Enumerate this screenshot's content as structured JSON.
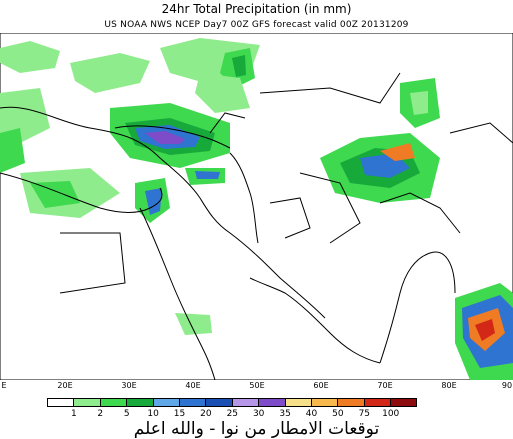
{
  "title": "24hr Total Precipitation (in mm)",
  "subtitle": "US NOAA NWS NCEP Day7 00Z GFS forecast valid 00Z 20131209",
  "longitude_labels": [
    "E",
    "20E",
    "30E",
    "40E",
    "50E",
    "60E",
    "70E",
    "80E",
    "90"
  ],
  "colorbar": {
    "colors": [
      "#ffffff",
      "#8fec8c",
      "#3fd94f",
      "#17a93a",
      "#5fa7e6",
      "#2f74d0",
      "#1c4fb3",
      "#b696e6",
      "#7e4cc8",
      "#f7e08a",
      "#f7b84d",
      "#ef7b25",
      "#d32718",
      "#8c0c10"
    ],
    "labels": [
      "1",
      "2",
      "5",
      "10",
      "15",
      "20",
      "25",
      "30",
      "35",
      "40",
      "50",
      "75",
      "100"
    ]
  },
  "caption": "توقعات الامطار من نوا - والله اعلم"
}
